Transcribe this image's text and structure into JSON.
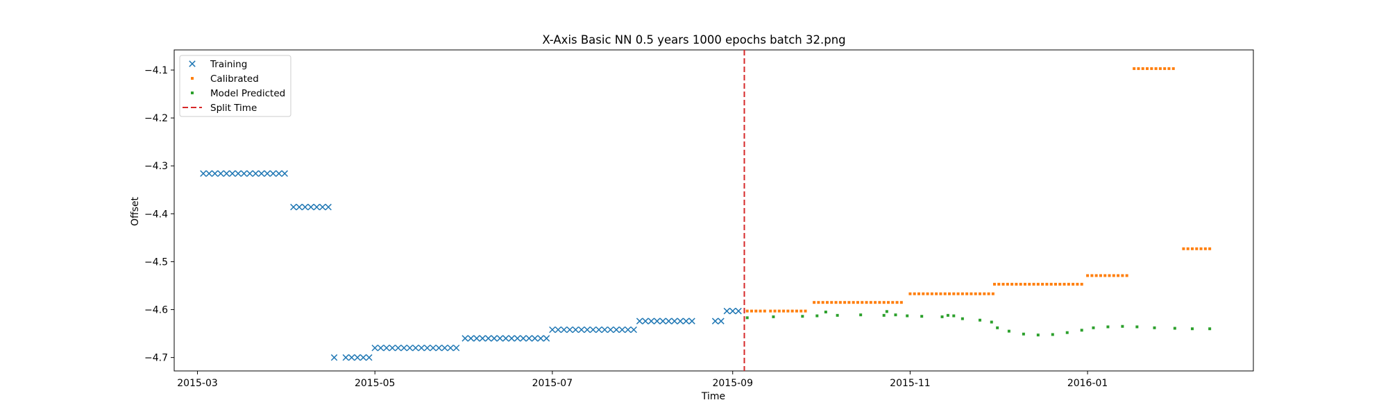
{
  "chart_data": {
    "type": "scatter",
    "title": "X-Axis Basic NN 0.5 years 1000 epochs batch 32.png",
    "xlabel": "Time",
    "ylabel": "Offset",
    "xlim": [
      "2015-02-21",
      "2016-02-27"
    ],
    "ylim": [
      -4.728,
      -4.058
    ],
    "x_ticks": [
      "2015-03",
      "2015-05",
      "2015-07",
      "2015-09",
      "2015-11",
      "2016-01"
    ],
    "y_ticks": [
      -4.7,
      -4.6,
      -4.5,
      -4.4,
      -4.3,
      -4.2,
      -4.1
    ],
    "y_tick_labels": [
      "−4.7",
      "−4.6",
      "−4.5",
      "−4.4",
      "−4.3",
      "−4.2",
      "−4.1"
    ],
    "grid": false,
    "legend_position": "upper-left",
    "split_time": "2015-09-05",
    "legend": [
      {
        "label": "Training",
        "marker": "x",
        "color": "#1f77b4"
      },
      {
        "label": "Calibrated",
        "marker": "square",
        "color": "#ff7f0e"
      },
      {
        "label": "Model Predicted",
        "marker": "square",
        "color": "#2ca02c"
      },
      {
        "label": "Split Time",
        "marker": "dashed-line",
        "color": "#d62728"
      }
    ],
    "series": [
      {
        "name": "Training",
        "color": "#1f77b4",
        "segments": [
          {
            "start": "2015-03-03",
            "end": "2015-03-31",
            "step_days": 2,
            "y": -4.316
          },
          {
            "start": "2015-04-03",
            "end": "2015-04-15",
            "step_days": 2,
            "y": -4.386
          },
          {
            "start": "2015-04-17",
            "end": "2015-04-17",
            "step_days": 2,
            "y": -4.7
          },
          {
            "start": "2015-04-21",
            "end": "2015-04-29",
            "step_days": 2,
            "y": -4.7
          },
          {
            "start": "2015-05-01",
            "end": "2015-05-29",
            "step_days": 2,
            "y": -4.68
          },
          {
            "start": "2015-06-01",
            "end": "2015-06-29",
            "step_days": 2,
            "y": -4.66
          },
          {
            "start": "2015-07-01",
            "end": "2015-07-29",
            "step_days": 2,
            "y": -4.642
          },
          {
            "start": "2015-07-31",
            "end": "2015-08-19",
            "step_days": 2,
            "y": -4.624
          },
          {
            "start": "2015-08-26",
            "end": "2015-08-28",
            "step_days": 2,
            "y": -4.624
          },
          {
            "start": "2015-08-30",
            "end": "2015-09-03",
            "step_days": 2,
            "y": -4.603
          }
        ]
      },
      {
        "name": "Calibrated",
        "color": "#ff7f0e",
        "segments": [
          {
            "start": "2015-09-06",
            "end": "2015-09-12",
            "step_days": 1.5,
            "y": -4.603
          },
          {
            "start": "2015-09-14",
            "end": "2015-09-27",
            "step_days": 1.5,
            "y": -4.603
          },
          {
            "start": "2015-09-29",
            "end": "2015-10-30",
            "step_days": 1.5,
            "y": -4.585
          },
          {
            "start": "2015-11-01",
            "end": "2015-11-30",
            "step_days": 1.5,
            "y": -4.567
          },
          {
            "start": "2015-11-30",
            "end": "2015-12-30",
            "step_days": 1.5,
            "y": -4.547
          },
          {
            "start": "2016-01-01",
            "end": "2016-01-15",
            "step_days": 1.5,
            "y": -4.529
          },
          {
            "start": "2016-01-17",
            "end": "2016-01-31",
            "step_days": 1.5,
            "y": -4.097
          },
          {
            "start": "2016-02-03",
            "end": "2016-02-12",
            "step_days": 1.5,
            "y": -4.473
          }
        ]
      },
      {
        "name": "Model Predicted",
        "color": "#2ca02c",
        "points": [
          [
            "2015-09-06",
            -4.617
          ],
          [
            "2015-09-15",
            -4.615
          ],
          [
            "2015-09-25",
            -4.614
          ],
          [
            "2015-09-30",
            -4.613
          ],
          [
            "2015-10-03",
            -4.605
          ],
          [
            "2015-10-07",
            -4.612
          ],
          [
            "2015-10-15",
            -4.611
          ],
          [
            "2015-10-23",
            -4.612
          ],
          [
            "2015-10-24",
            -4.604
          ],
          [
            "2015-10-27",
            -4.611
          ],
          [
            "2015-10-31",
            -4.613
          ],
          [
            "2015-11-05",
            -4.614
          ],
          [
            "2015-11-12",
            -4.615
          ],
          [
            "2015-11-14",
            -4.612
          ],
          [
            "2015-11-16",
            -4.613
          ],
          [
            "2015-11-19",
            -4.619
          ],
          [
            "2015-11-25",
            -4.622
          ],
          [
            "2015-11-29",
            -4.626
          ],
          [
            "2015-12-01",
            -4.638
          ],
          [
            "2015-12-05",
            -4.645
          ],
          [
            "2015-12-10",
            -4.651
          ],
          [
            "2015-12-15",
            -4.653
          ],
          [
            "2015-12-20",
            -4.652
          ],
          [
            "2015-12-25",
            -4.648
          ],
          [
            "2015-12-30",
            -4.643
          ],
          [
            "2016-01-03",
            -4.638
          ],
          [
            "2016-01-08",
            -4.636
          ],
          [
            "2016-01-13",
            -4.635
          ],
          [
            "2016-01-18",
            -4.636
          ],
          [
            "2016-01-24",
            -4.638
          ],
          [
            "2016-01-31",
            -4.639
          ],
          [
            "2016-02-06",
            -4.64
          ],
          [
            "2016-02-12",
            -4.64
          ]
        ]
      }
    ]
  }
}
